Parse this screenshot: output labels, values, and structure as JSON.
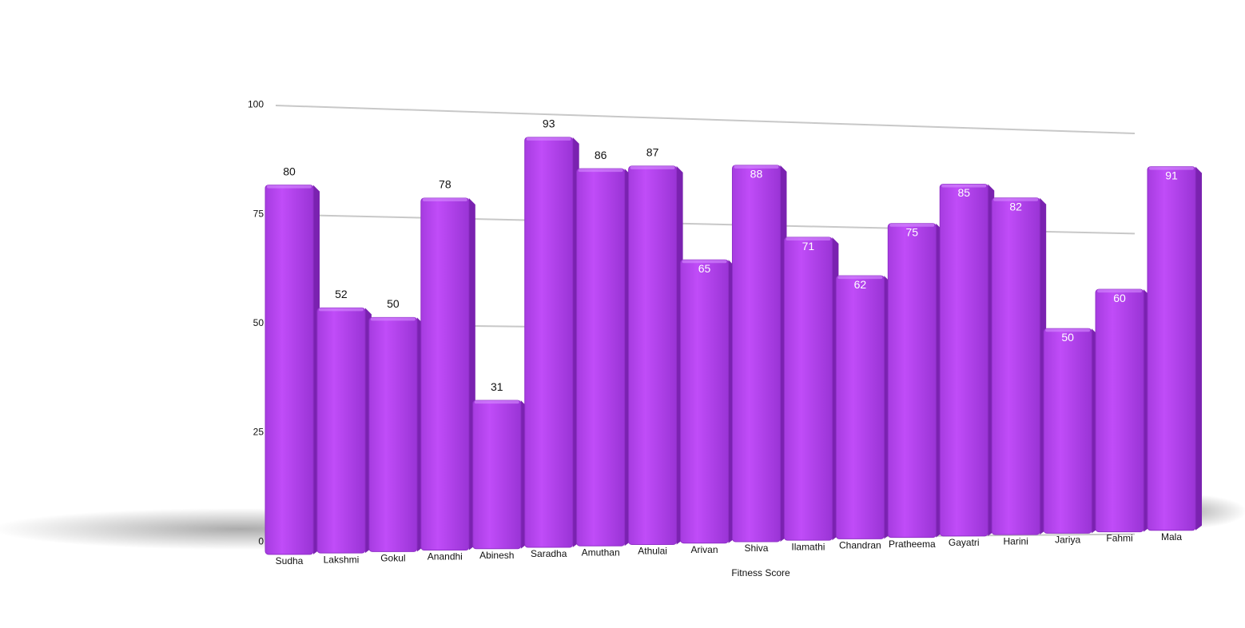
{
  "chart_data": {
    "type": "bar",
    "x_label": "Fitness Score",
    "categories": [
      "Sudha",
      "Lakshmi",
      "Gokul",
      "Anandhi",
      "Abinesh",
      "Saradha",
      "Amuthan",
      "Athulai",
      "Arivan",
      "Shiva",
      "Ilamathi",
      "Chandran",
      "Pratheema",
      "Gayatri",
      "Harini",
      "Jariya",
      "Fahmi",
      "Mala"
    ],
    "values": [
      80,
      52,
      50,
      78,
      31,
      93,
      86,
      87,
      65,
      88,
      71,
      62,
      75,
      85,
      82,
      50,
      60,
      91
    ],
    "color": "#b845f2",
    "ylim": [
      0,
      100
    ],
    "yticks": [
      0,
      25,
      50,
      75,
      100
    ],
    "grid": true
  }
}
